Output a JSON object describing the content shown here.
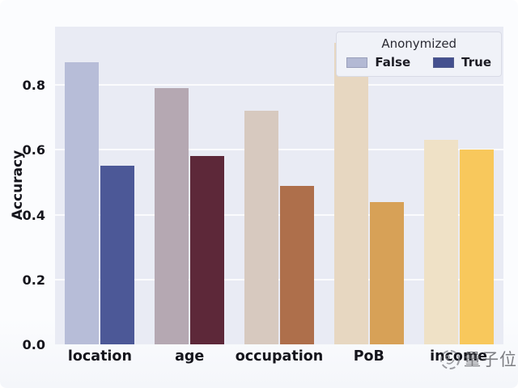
{
  "chart_data": {
    "type": "bar",
    "title": "",
    "xlabel": "",
    "ylabel": "Accuracy",
    "categories": [
      "location",
      "age",
      "occupation",
      "PoB",
      "income"
    ],
    "series": [
      {
        "name": "False",
        "values": [
          0.87,
          0.79,
          0.72,
          0.93,
          0.63
        ],
        "colors": [
          "#b7bdd8",
          "#b5a8b2",
          "#d7c9bf",
          "#e7d7c1",
          "#efe1c6"
        ]
      },
      {
        "name": "True",
        "values": [
          0.55,
          0.58,
          0.49,
          0.44,
          0.6
        ],
        "colors": [
          "#4c5897",
          "#5d2839",
          "#ae6f4b",
          "#d7a157",
          "#f8c85c"
        ]
      }
    ],
    "ylim": [
      0,
      0.98
    ],
    "yticks": [
      {
        "label": "0.0",
        "value": 0.0
      },
      {
        "label": "0.2",
        "value": 0.2
      },
      {
        "label": "0.4",
        "value": 0.4
      },
      {
        "label": "0.6",
        "value": 0.6
      },
      {
        "label": "0.8",
        "value": 0.8
      }
    ],
    "grid": true,
    "legend": {
      "title": "Anonymized",
      "position": "upper right",
      "entries": [
        {
          "label": "False",
          "color": "#b3b9d4"
        },
        {
          "label": "True",
          "color": "#44508f"
        }
      ]
    }
  },
  "colors": {
    "figure_background": "#fbfcfe",
    "plot_background": "#e9ebf4",
    "grid_line": "#ffffff",
    "tick_text": "#15151c",
    "legend_background": "#f0f2f8"
  },
  "watermark": {
    "text": "量子位"
  }
}
